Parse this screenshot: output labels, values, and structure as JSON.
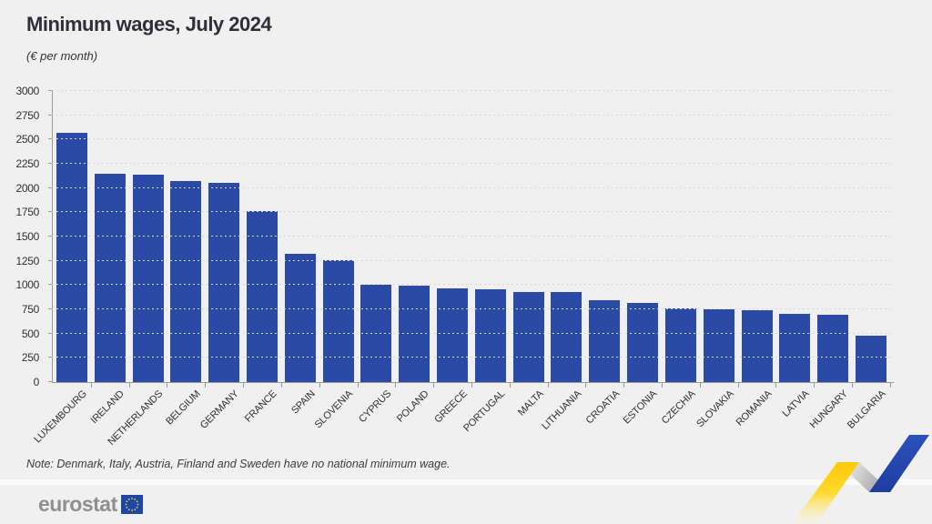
{
  "page": {
    "background": "#f0f0f0"
  },
  "header": {
    "title": "Minimum wages, July 2024",
    "subtitle": "(€ per month)"
  },
  "chart_data": {
    "type": "bar",
    "title": "Minimum wages, July 2024",
    "unit_label": "(€ per month)",
    "categories": [
      "LUXEMBOURG",
      "IRELAND",
      "NETHERLANDS",
      "BELGIUM",
      "GERMANY",
      "FRANCE",
      "SPAIN",
      "SLOVENIA",
      "CYPRUS",
      "POLAND",
      "GREECE",
      "PORTUGAL",
      "MALTA",
      "LITHUANIA",
      "CROATIA",
      "ESTONIA",
      "CZECHIA",
      "SLOVAKIA",
      "ROMANIA",
      "LATVIA",
      "HUNGARY",
      "BULGARIA"
    ],
    "values": [
      2571,
      2146,
      2134,
      2070,
      2054,
      1767,
      1323,
      1254,
      1000,
      998,
      968,
      957,
      925,
      924,
      840,
      820,
      764,
      750,
      743,
      700,
      697,
      477
    ],
    "ylim": [
      0,
      3000
    ],
    "ytick_step": 250,
    "xlabel": "",
    "ylabel": "",
    "grid": "horizontal-dashed",
    "legend_position": "none",
    "bar_color": "#2b4aa5",
    "xlabel_rotation_deg": 45
  },
  "note": {
    "text": "Note: Denmark, Italy, Austria, Finland and Sweden have no national minimum wage."
  },
  "footer": {
    "logo_text": "eurostat",
    "flag_icon": "eu-flag-icon"
  },
  "decoration": {
    "ribbon_yellow": "#ffd10e",
    "ribbon_gray": "#bdbdbd",
    "ribbon_blue": "#2a4db8",
    "flag_blue": "#1e46a5",
    "star_yellow": "#ffd617"
  }
}
